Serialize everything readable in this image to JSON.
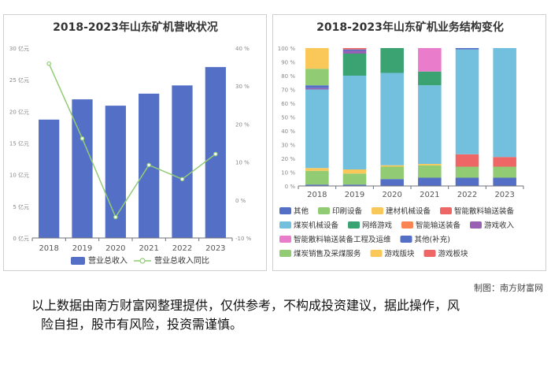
{
  "chart_data": [
    {
      "type": "bar",
      "title": "2018-2023年山东矿机营收状况",
      "categories": [
        "2018",
        "2019",
        "2020",
        "2021",
        "2022",
        "2023"
      ],
      "series": [
        {
          "name": "营业总收入",
          "type": "bar",
          "axis": "left",
          "values": [
            18.7,
            21.9,
            20.9,
            22.8,
            24.1,
            27.0
          ],
          "color": "#5470c6"
        },
        {
          "name": "营业总收入同比",
          "type": "line",
          "axis": "right",
          "values": [
            35.9,
            16.2,
            -4.5,
            9.2,
            5.5,
            12.1
          ],
          "color": "#91cc75"
        }
      ],
      "y_left": {
        "min": 0,
        "max": 30,
        "step": 5,
        "ticks": [
          "0 亿元",
          "5 亿元",
          "10 亿元",
          "15 亿元",
          "20 亿元",
          "25 亿元",
          "30 亿元"
        ]
      },
      "y_right": {
        "min": -10,
        "max": 40,
        "step": 10,
        "ticks": [
          "-10 %",
          "0 %",
          "10 %",
          "20 %",
          "30 %",
          "40 %"
        ]
      },
      "grid": false,
      "legend": "bottom"
    },
    {
      "type": "bar",
      "stacked": true,
      "title": "2018-2023年山东矿机业务结构变化",
      "categories": [
        "2018",
        "2019",
        "2020",
        "2021",
        "2022",
        "2023"
      ],
      "y": {
        "min": 0,
        "max": 100,
        "step": 10,
        "ticks": [
          "0 %",
          "10 %",
          "20 %",
          "30 %",
          "40 %",
          "50 %",
          "60 %",
          "70 %",
          "80 %",
          "90 %",
          "100 %"
        ]
      },
      "series": [
        {
          "name": "其他",
          "color": "#5470c6",
          "values": [
            1,
            1,
            5,
            6,
            6,
            6
          ]
        },
        {
          "name": "印刷设备",
          "color": "#91cc75",
          "values": [
            10,
            8,
            9,
            9,
            8,
            8
          ]
        },
        {
          "name": "建材机械设备",
          "color": "#fac858",
          "values": [
            2,
            3,
            1,
            1,
            0,
            0
          ]
        },
        {
          "name": "智能散料输送装备",
          "color": "#ee6666",
          "values": [
            0,
            0,
            0,
            0,
            9,
            7
          ]
        },
        {
          "name": "煤炭机械设备",
          "color": "#73c0de",
          "values": [
            57,
            68,
            67,
            57,
            76,
            79
          ]
        },
        {
          "name": "网络游戏",
          "color": "#3ba272",
          "values": [
            0,
            16,
            18,
            10,
            0,
            0
          ]
        },
        {
          "name": "智能输送装备",
          "color": "#fc8452",
          "values": [
            0,
            0,
            0,
            0,
            0,
            0
          ]
        },
        {
          "name": "游戏收入",
          "color": "#9a60b4",
          "values": [
            1,
            2,
            0,
            0,
            0,
            0
          ]
        },
        {
          "name": "智能散料输送装备工程及运维",
          "color": "#ea7ccc",
          "values": [
            0,
            0,
            0,
            17,
            0,
            0
          ]
        },
        {
          "name": "其他(补充)",
          "color": "#5470c6",
          "values": [
            2,
            1,
            0,
            0,
            1,
            0
          ]
        },
        {
          "name": "煤炭销售及采煤服务",
          "color": "#91cc75",
          "values": [
            12,
            0,
            0,
            0,
            0,
            0
          ]
        },
        {
          "name": "游戏版块",
          "color": "#fac858",
          "values": [
            15,
            0,
            0,
            0,
            0,
            0
          ]
        },
        {
          "name": "游戏板块",
          "color": "#ee6666",
          "values": [
            0,
            1,
            0,
            0,
            0,
            0
          ]
        }
      ],
      "grid": false,
      "legend": "bottom"
    }
  ],
  "footer": {
    "credit": "制图：南方财富网",
    "disclaimer_line1": "以上数据由南方财富网整理提供，仅供参考，不构成投资建议，据此操作，风",
    "disclaimer_line2": "险自担，股市有风险，投资需谨慎。"
  }
}
